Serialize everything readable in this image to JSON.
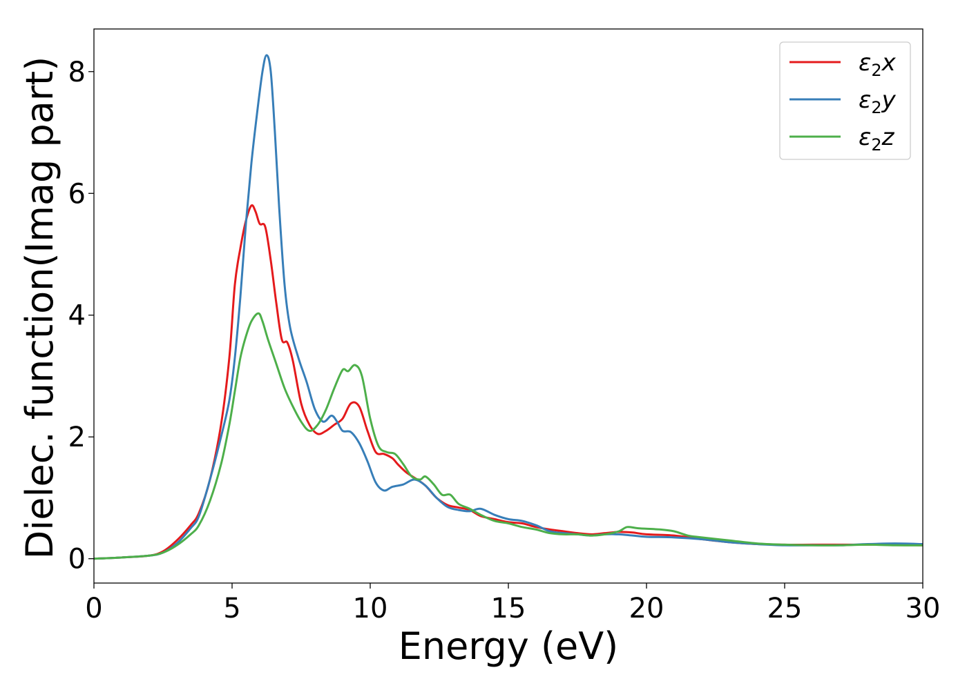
{
  "chart_data": {
    "type": "line",
    "xlabel": "Energy (eV)",
    "ylabel": "Dielec. function(Imag part)",
    "xlim": [
      0,
      30
    ],
    "ylim": [
      -0.4,
      8.7
    ],
    "xticks": [
      0,
      5,
      10,
      15,
      20,
      25,
      30
    ],
    "yticks": [
      0,
      2,
      4,
      6,
      8
    ],
    "grid": false,
    "legend_position": "top-right",
    "series": [
      {
        "name": "ε₂x",
        "legend_base": "ε",
        "legend_sub": "2",
        "legend_var": "x",
        "color": "#e41a1c",
        "points": [
          [
            0,
            0.0
          ],
          [
            1,
            0.02
          ],
          [
            2,
            0.05
          ],
          [
            2.5,
            0.12
          ],
          [
            3,
            0.3
          ],
          [
            3.5,
            0.55
          ],
          [
            3.8,
            0.75
          ],
          [
            4.2,
            1.3
          ],
          [
            4.6,
            2.2
          ],
          [
            4.9,
            3.3
          ],
          [
            5.1,
            4.5
          ],
          [
            5.3,
            5.1
          ],
          [
            5.5,
            5.55
          ],
          [
            5.7,
            5.8
          ],
          [
            5.85,
            5.7
          ],
          [
            6.0,
            5.5
          ],
          [
            6.2,
            5.45
          ],
          [
            6.4,
            4.9
          ],
          [
            6.6,
            4.2
          ],
          [
            6.8,
            3.6
          ],
          [
            7.0,
            3.55
          ],
          [
            7.2,
            3.25
          ],
          [
            7.5,
            2.55
          ],
          [
            7.8,
            2.2
          ],
          [
            8.1,
            2.05
          ],
          [
            8.4,
            2.1
          ],
          [
            8.7,
            2.2
          ],
          [
            9.0,
            2.3
          ],
          [
            9.3,
            2.55
          ],
          [
            9.6,
            2.5
          ],
          [
            9.9,
            2.1
          ],
          [
            10.2,
            1.75
          ],
          [
            10.5,
            1.72
          ],
          [
            10.8,
            1.65
          ],
          [
            11.0,
            1.55
          ],
          [
            11.3,
            1.42
          ],
          [
            11.7,
            1.3
          ],
          [
            12.0,
            1.2
          ],
          [
            12.4,
            1.0
          ],
          [
            12.8,
            0.88
          ],
          [
            13.2,
            0.84
          ],
          [
            13.6,
            0.8
          ],
          [
            14.0,
            0.7
          ],
          [
            14.5,
            0.65
          ],
          [
            15.0,
            0.6
          ],
          [
            15.5,
            0.58
          ],
          [
            16.0,
            0.52
          ],
          [
            16.5,
            0.48
          ],
          [
            17.0,
            0.45
          ],
          [
            17.5,
            0.42
          ],
          [
            18.0,
            0.4
          ],
          [
            18.5,
            0.42
          ],
          [
            19.0,
            0.44
          ],
          [
            19.5,
            0.43
          ],
          [
            20.0,
            0.4
          ],
          [
            21.0,
            0.38
          ],
          [
            22.0,
            0.32
          ],
          [
            23.0,
            0.27
          ],
          [
            24.0,
            0.24
          ],
          [
            25.0,
            0.23
          ],
          [
            26.0,
            0.23
          ],
          [
            27.0,
            0.23
          ],
          [
            28.0,
            0.23
          ],
          [
            29.0,
            0.23
          ],
          [
            30.0,
            0.22
          ]
        ]
      },
      {
        "name": "ε₂y",
        "legend_base": "ε",
        "legend_sub": "2",
        "legend_var": "y",
        "color": "#377eb8",
        "points": [
          [
            0,
            0.0
          ],
          [
            1,
            0.02
          ],
          [
            2,
            0.05
          ],
          [
            2.5,
            0.1
          ],
          [
            3,
            0.25
          ],
          [
            3.5,
            0.5
          ],
          [
            3.8,
            0.7
          ],
          [
            4.2,
            1.3
          ],
          [
            4.6,
            2.0
          ],
          [
            4.9,
            2.6
          ],
          [
            5.1,
            3.3
          ],
          [
            5.3,
            4.3
          ],
          [
            5.5,
            5.5
          ],
          [
            5.7,
            6.5
          ],
          [
            5.9,
            7.3
          ],
          [
            6.1,
            8.0
          ],
          [
            6.25,
            8.27
          ],
          [
            6.4,
            8.0
          ],
          [
            6.55,
            7.0
          ],
          [
            6.7,
            5.8
          ],
          [
            6.9,
            4.5
          ],
          [
            7.1,
            3.8
          ],
          [
            7.4,
            3.3
          ],
          [
            7.7,
            2.9
          ],
          [
            8.0,
            2.45
          ],
          [
            8.3,
            2.25
          ],
          [
            8.6,
            2.35
          ],
          [
            8.8,
            2.25
          ],
          [
            9.0,
            2.1
          ],
          [
            9.3,
            2.08
          ],
          [
            9.6,
            1.9
          ],
          [
            9.9,
            1.6
          ],
          [
            10.2,
            1.25
          ],
          [
            10.5,
            1.12
          ],
          [
            10.8,
            1.18
          ],
          [
            11.2,
            1.22
          ],
          [
            11.6,
            1.3
          ],
          [
            12.0,
            1.2
          ],
          [
            12.4,
            1.0
          ],
          [
            12.8,
            0.85
          ],
          [
            13.2,
            0.8
          ],
          [
            13.6,
            0.78
          ],
          [
            14.0,
            0.82
          ],
          [
            14.5,
            0.72
          ],
          [
            15.0,
            0.65
          ],
          [
            15.5,
            0.62
          ],
          [
            16.0,
            0.55
          ],
          [
            16.5,
            0.45
          ],
          [
            17.0,
            0.42
          ],
          [
            17.5,
            0.4
          ],
          [
            18.0,
            0.38
          ],
          [
            18.5,
            0.4
          ],
          [
            19.0,
            0.4
          ],
          [
            19.5,
            0.38
          ],
          [
            20.0,
            0.36
          ],
          [
            21.0,
            0.35
          ],
          [
            22.0,
            0.32
          ],
          [
            23.0,
            0.27
          ],
          [
            24.0,
            0.24
          ],
          [
            25.0,
            0.22
          ],
          [
            26.0,
            0.22
          ],
          [
            27.0,
            0.22
          ],
          [
            28.0,
            0.24
          ],
          [
            29.0,
            0.25
          ],
          [
            30.0,
            0.24
          ]
        ]
      },
      {
        "name": "ε₂z",
        "legend_base": "ε",
        "legend_sub": "2",
        "legend_var": "z",
        "color": "#4daf4a",
        "points": [
          [
            0,
            0.0
          ],
          [
            1,
            0.02
          ],
          [
            2,
            0.05
          ],
          [
            2.5,
            0.1
          ],
          [
            3,
            0.22
          ],
          [
            3.5,
            0.4
          ],
          [
            3.8,
            0.55
          ],
          [
            4.2,
            0.95
          ],
          [
            4.6,
            1.55
          ],
          [
            4.9,
            2.2
          ],
          [
            5.1,
            2.75
          ],
          [
            5.3,
            3.3
          ],
          [
            5.5,
            3.65
          ],
          [
            5.7,
            3.9
          ],
          [
            5.95,
            4.03
          ],
          [
            6.1,
            3.9
          ],
          [
            6.3,
            3.6
          ],
          [
            6.6,
            3.2
          ],
          [
            6.9,
            2.8
          ],
          [
            7.2,
            2.5
          ],
          [
            7.5,
            2.25
          ],
          [
            7.8,
            2.1
          ],
          [
            8.1,
            2.2
          ],
          [
            8.4,
            2.45
          ],
          [
            8.7,
            2.8
          ],
          [
            9.0,
            3.1
          ],
          [
            9.2,
            3.08
          ],
          [
            9.45,
            3.18
          ],
          [
            9.7,
            3.0
          ],
          [
            10.0,
            2.3
          ],
          [
            10.3,
            1.85
          ],
          [
            10.6,
            1.75
          ],
          [
            10.9,
            1.72
          ],
          [
            11.2,
            1.55
          ],
          [
            11.5,
            1.35
          ],
          [
            11.8,
            1.3
          ],
          [
            12.0,
            1.35
          ],
          [
            12.3,
            1.22
          ],
          [
            12.6,
            1.05
          ],
          [
            12.9,
            1.05
          ],
          [
            13.2,
            0.9
          ],
          [
            13.6,
            0.82
          ],
          [
            14.0,
            0.72
          ],
          [
            14.5,
            0.62
          ],
          [
            15.0,
            0.58
          ],
          [
            15.5,
            0.52
          ],
          [
            16.0,
            0.48
          ],
          [
            16.5,
            0.42
          ],
          [
            17.0,
            0.4
          ],
          [
            17.5,
            0.4
          ],
          [
            18.0,
            0.38
          ],
          [
            18.5,
            0.4
          ],
          [
            19.0,
            0.45
          ],
          [
            19.3,
            0.52
          ],
          [
            19.7,
            0.5
          ],
          [
            20.5,
            0.48
          ],
          [
            21.0,
            0.45
          ],
          [
            21.5,
            0.38
          ],
          [
            22.0,
            0.35
          ],
          [
            23.0,
            0.3
          ],
          [
            24.0,
            0.25
          ],
          [
            25.0,
            0.23
          ],
          [
            26.0,
            0.22
          ],
          [
            27.0,
            0.22
          ],
          [
            28.0,
            0.23
          ],
          [
            29.0,
            0.22
          ],
          [
            30.0,
            0.22
          ]
        ]
      }
    ]
  }
}
